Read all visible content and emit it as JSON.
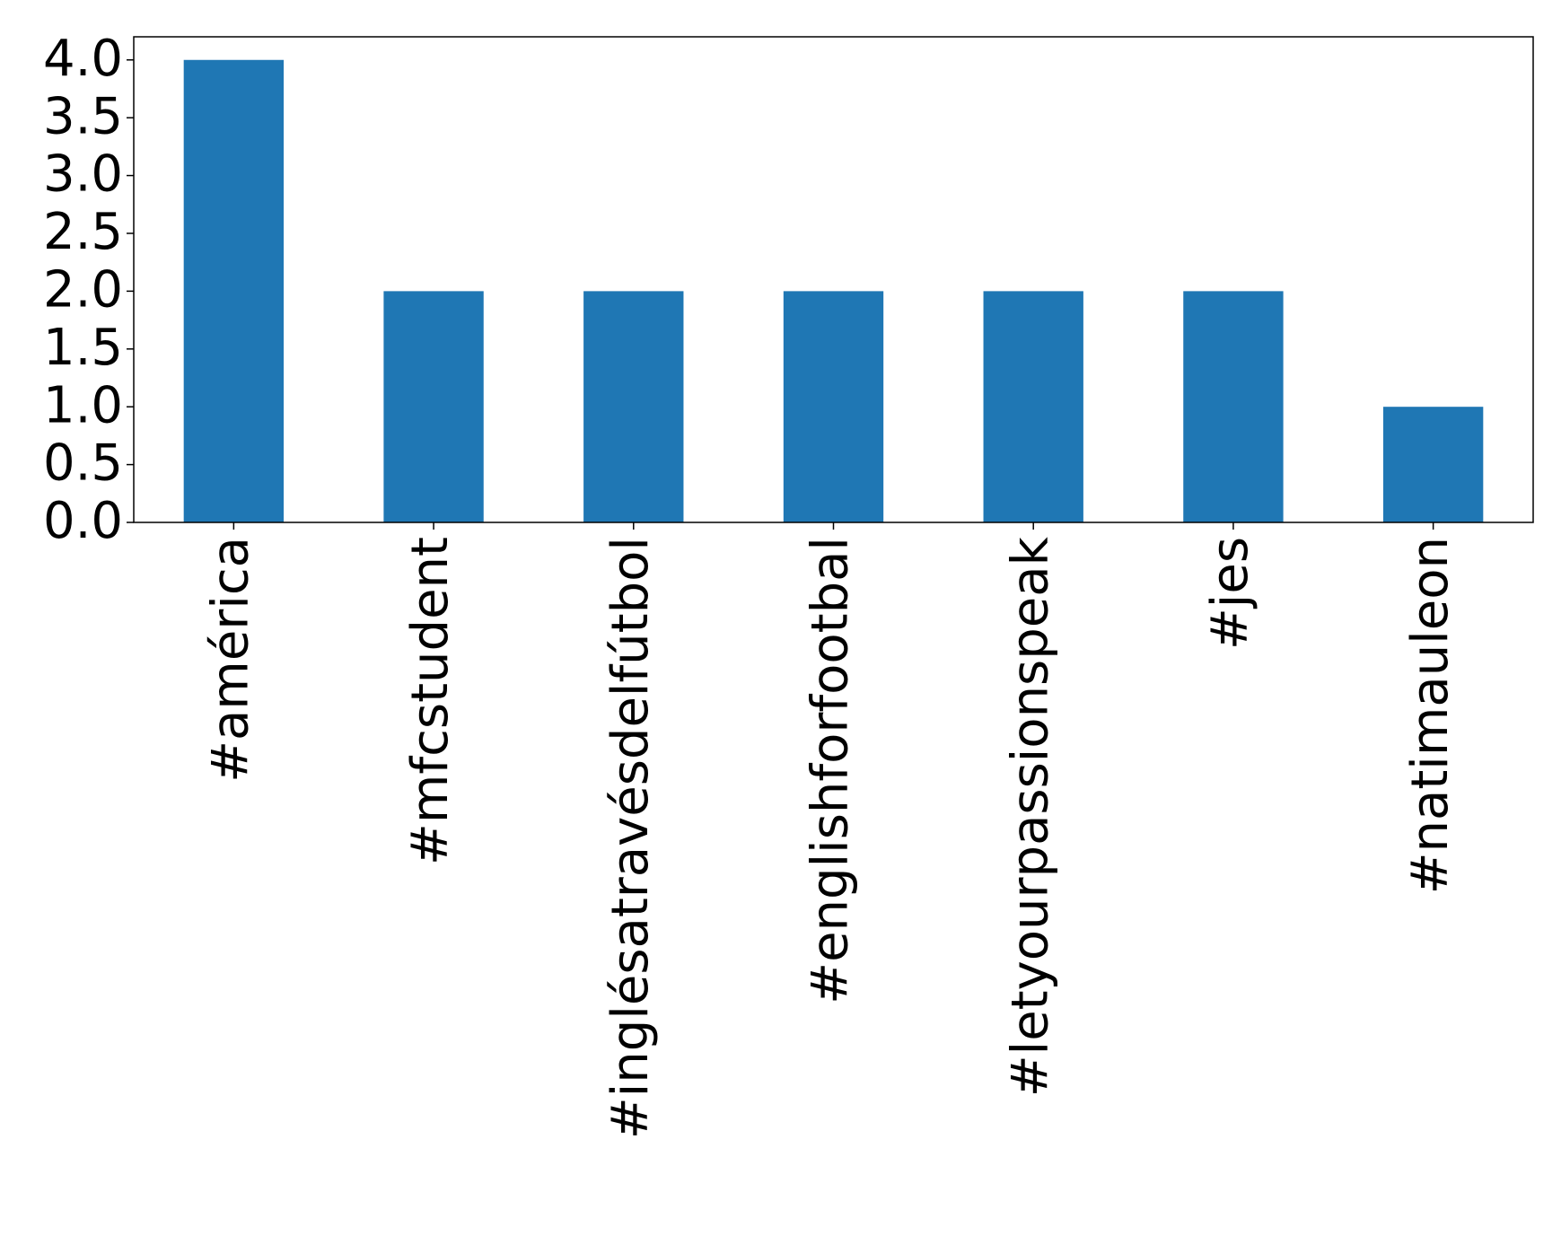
{
  "chart_data": {
    "type": "bar",
    "categories": [
      "#américa",
      "#mfcstudent",
      "#inglésatravésdelfútbol",
      "#englishforfootbal",
      "#letyourpassionspeak",
      "#jes",
      "#natimauleon"
    ],
    "values": [
      4,
      2,
      2,
      2,
      2,
      2,
      1
    ],
    "color": "#1f77b4",
    "ylim": [
      0,
      4.2
    ],
    "yticks": [
      {
        "value": 0,
        "label": "0.0"
      },
      0.5,
      {
        "value": 1,
        "label": "1.0"
      },
      1.5,
      {
        "value": 2,
        "label": "2.0"
      },
      2.5,
      {
        "value": 3,
        "label": "3.0"
      },
      3.5,
      {
        "value": 4,
        "label": "4.0"
      }
    ],
    "grid": false
  }
}
